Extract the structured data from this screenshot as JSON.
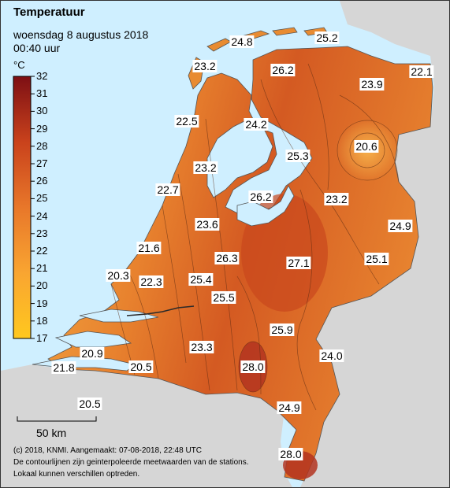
{
  "title": "Temperatuur",
  "subtitle": "woensdag 8 augustus 2018",
  "time": "00:40 uur",
  "legend": {
    "unit": "°C",
    "ticks": [
      "32",
      "31",
      "30",
      "29",
      "28",
      "27",
      "26",
      "25",
      "24",
      "23",
      "22",
      "21",
      "20",
      "19",
      "18",
      "17"
    ],
    "range": [
      17,
      32
    ]
  },
  "scale_bar": {
    "label": "50 km"
  },
  "footer": {
    "line1": "(c) 2018, KNMI. Aangemaakt: 07-08-2018, 22:48 UTC",
    "line2": "De contourlijnen zijn geinterpoleerde meetwaarden van de stations.",
    "line3": "Lokaal kunnen verschillen optreden."
  },
  "colors": {
    "sea": "#cfefff",
    "neighbour_land": "#d6d6d6",
    "cool": "#f2a23b",
    "warm": "#cf4c1b",
    "hot": "#a8281e"
  },
  "stations": [
    {
      "value": "24.8"
    },
    {
      "value": "25.2"
    },
    {
      "value": "23.2"
    },
    {
      "value": "26.2"
    },
    {
      "value": "22.1"
    },
    {
      "value": "23.9"
    },
    {
      "value": "22.5"
    },
    {
      "value": "24.2"
    },
    {
      "value": "25.3"
    },
    {
      "value": "20.6"
    },
    {
      "value": "23.2"
    },
    {
      "value": "22.7"
    },
    {
      "value": "26.2"
    },
    {
      "value": "23.2"
    },
    {
      "value": "23.6"
    },
    {
      "value": "24.9"
    },
    {
      "value": "21.6"
    },
    {
      "value": "26.3"
    },
    {
      "value": "27.1"
    },
    {
      "value": "25.1"
    },
    {
      "value": "20.3"
    },
    {
      "value": "22.3"
    },
    {
      "value": "25.4"
    },
    {
      "value": "25.5"
    },
    {
      "value": "25.9"
    },
    {
      "value": "23.3"
    },
    {
      "value": "20.9"
    },
    {
      "value": "24.0"
    },
    {
      "value": "21.8"
    },
    {
      "value": "20.5"
    },
    {
      "value": "28.0"
    },
    {
      "value": "20.5"
    },
    {
      "value": "24.9"
    },
    {
      "value": "28.0"
    }
  ]
}
